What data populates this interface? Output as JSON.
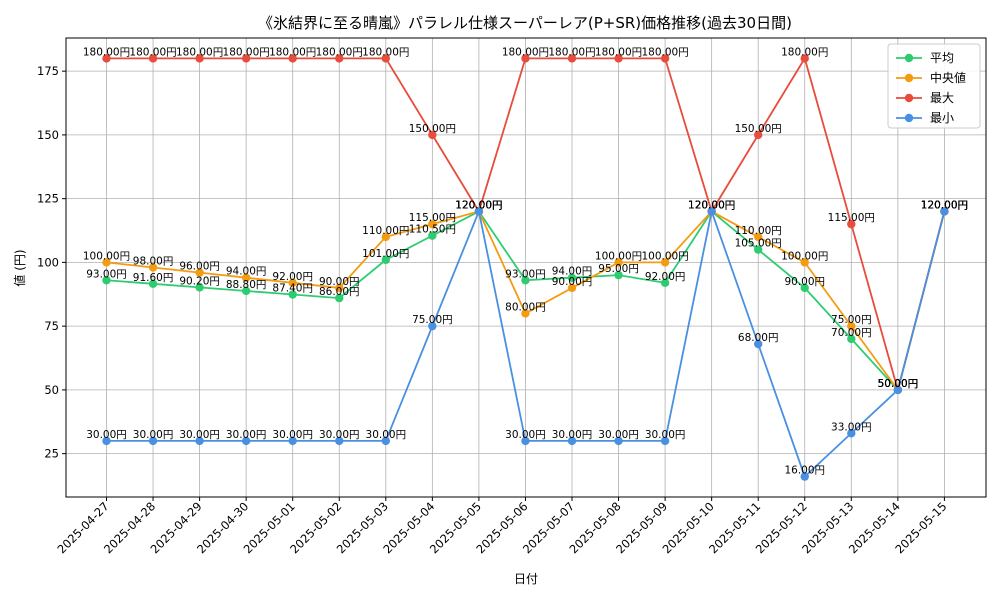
{
  "chart_data": {
    "type": "line",
    "title": "《氷結界に至る晴嵐》パラレル仕様スーパーレア(P+SR)価格推移(過去30日間)",
    "xlabel": "日付",
    "ylabel": "値 (円)",
    "ylim": [
      8,
      188
    ],
    "yticks": [
      25,
      50,
      75,
      100,
      125,
      150,
      175
    ],
    "grid": true,
    "legend_position": "top-right",
    "value_suffix": "円",
    "categories": [
      "2025-04-27",
      "2025-04-28",
      "2025-04-29",
      "2025-04-30",
      "2025-05-01",
      "2025-05-02",
      "2025-05-03",
      "2025-05-04",
      "2025-05-05",
      "2025-05-06",
      "2025-05-07",
      "2025-05-08",
      "2025-05-09",
      "2025-05-10",
      "2025-05-11",
      "2025-05-12",
      "2025-05-13",
      "2025-05-14",
      "2025-05-15"
    ],
    "series": [
      {
        "name": "平均",
        "color": "#2ecc71",
        "values": [
          93.0,
          91.6,
          90.2,
          88.8,
          87.4,
          86.0,
          101.0,
          110.5,
          120.0,
          93.0,
          94.0,
          95.0,
          92.0,
          120.0,
          105.0,
          90.0,
          70.0,
          50.0,
          120.0
        ]
      },
      {
        "name": "中央値",
        "color": "#f39c12",
        "values": [
          100.0,
          98.0,
          96.0,
          94.0,
          92.0,
          90.0,
          110.0,
          115.0,
          120.0,
          80.0,
          90.0,
          100.0,
          100.0,
          120.0,
          110.0,
          100.0,
          75.0,
          50.0,
          120.0
        ]
      },
      {
        "name": "最大",
        "color": "#e74c3c",
        "values": [
          180.0,
          180.0,
          180.0,
          180.0,
          180.0,
          180.0,
          180.0,
          150.0,
          120.0,
          180.0,
          180.0,
          180.0,
          180.0,
          120.0,
          150.0,
          180.0,
          115.0,
          50.0,
          120.0
        ]
      },
      {
        "name": "最小",
        "color": "#4a90e2",
        "values": [
          30.0,
          30.0,
          30.0,
          30.0,
          30.0,
          30.0,
          30.0,
          75.0,
          120.0,
          30.0,
          30.0,
          30.0,
          30.0,
          120.0,
          68.0,
          16.0,
          33.0,
          50.0,
          120.0
        ]
      }
    ]
  }
}
